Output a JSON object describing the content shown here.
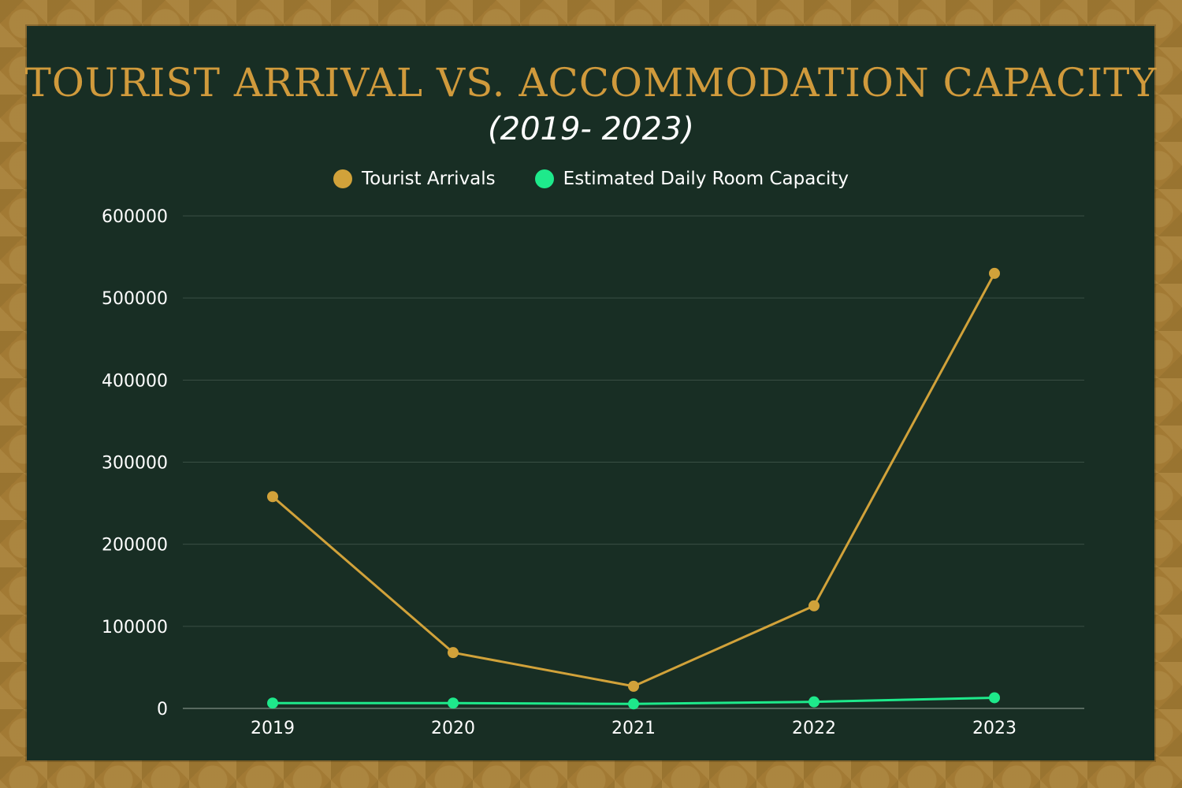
{
  "colors": {
    "frame": "#a27a34",
    "panel": "#182e24",
    "title": "#d09a3c",
    "gridline": "#3a4f44",
    "tourist": "#d1a23a",
    "capacity": "#1ee98b"
  },
  "chart_data": {
    "type": "line",
    "title": "TOURIST ARRIVAL VS. ACCOMMODATION CAPACITY",
    "subtitle": "(2019- 2023)",
    "xlabel": "",
    "ylabel": "",
    "categories": [
      "2019",
      "2020",
      "2021",
      "2022",
      "2023"
    ],
    "series": [
      {
        "name": "Tourist Arrivals",
        "color": "#d1a23a",
        "values": [
          258000,
          68000,
          27000,
          125000,
          530000
        ]
      },
      {
        "name": "Estimated Daily Room Capacity",
        "color": "#1ee98b",
        "values": [
          6500,
          6500,
          5500,
          8000,
          13000
        ]
      }
    ],
    "ylim": [
      0,
      600000
    ],
    "yticks": [
      "0",
      "100000",
      "200000",
      "300000",
      "400000",
      "500000",
      "600000"
    ],
    "grid": true,
    "legend_position": "top-center"
  }
}
